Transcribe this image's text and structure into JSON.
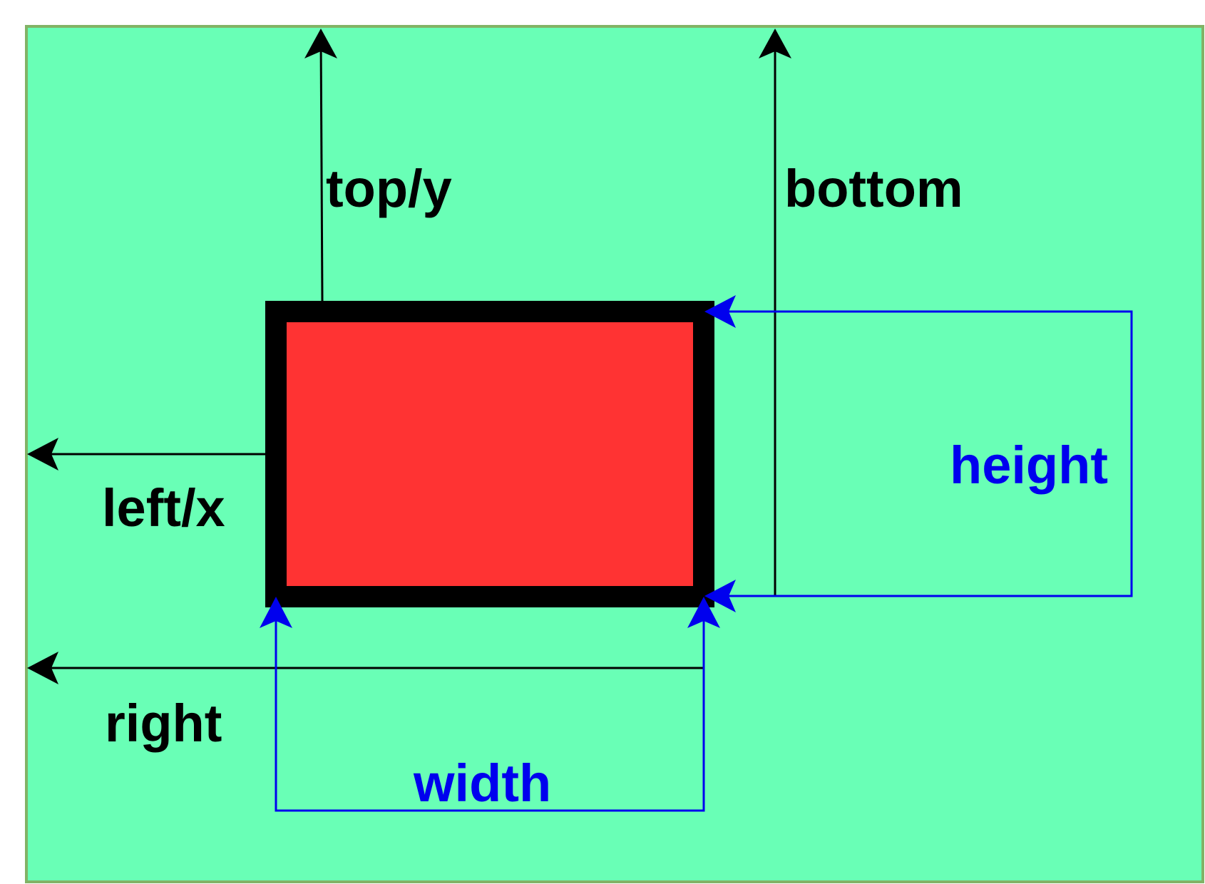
{
  "colors": {
    "background": "#69ffb6",
    "background_border": "#82b366",
    "box_fill": "#ff3333",
    "box_border": "#000000",
    "arrow_black": "#000000",
    "arrow_blue": "#0000ee"
  },
  "labels": {
    "top": "top/y",
    "bottom": "bottom",
    "left": "left/x",
    "right": "right",
    "width": "width",
    "height": "height"
  }
}
